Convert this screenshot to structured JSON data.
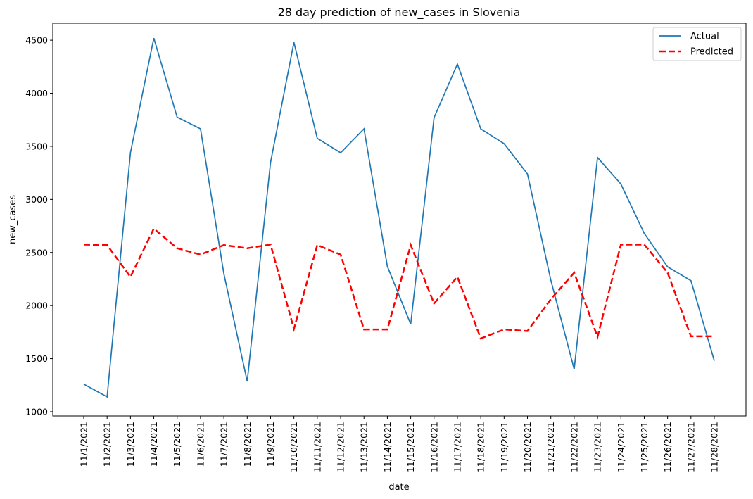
{
  "chart_data": {
    "type": "line",
    "title": "28 day prediction of new_cases in Slovenia",
    "xlabel": "date",
    "ylabel": "new_cases",
    "ylim": [
      960,
      4660
    ],
    "yticks": [
      1000,
      1500,
      2000,
      2500,
      3000,
      3500,
      4000,
      4500
    ],
    "grid": false,
    "legend_position": "top-right",
    "categories": [
      "11/1/2021",
      "11/2/2021",
      "11/3/2021",
      "11/4/2021",
      "11/5/2021",
      "11/6/2021",
      "11/7/2021",
      "11/8/2021",
      "11/9/2021",
      "11/10/2021",
      "11/11/2021",
      "11/12/2021",
      "11/13/2021",
      "11/14/2021",
      "11/15/2021",
      "11/16/2021",
      "11/17/2021",
      "11/18/2021",
      "11/19/2021",
      "11/20/2021",
      "11/21/2021",
      "11/22/2021",
      "11/23/2021",
      "11/24/2021",
      "11/25/2021",
      "11/26/2021",
      "11/27/2021",
      "11/28/2021"
    ],
    "series": [
      {
        "name": "Actual",
        "color": "#1f77b4",
        "style": "solid",
        "values": [
          1260,
          1140,
          3440,
          4520,
          3775,
          3665,
          2300,
          1285,
          3350,
          4480,
          3575,
          3440,
          3665,
          2370,
          1825,
          3770,
          4275,
          3665,
          3525,
          3240,
          2240,
          1400,
          3395,
          3145,
          2680,
          2365,
          2235,
          1480
        ]
      },
      {
        "name": "Predicted",
        "color": "#ff0000",
        "style": "dashed",
        "values": [
          2575,
          2570,
          2270,
          2725,
          2540,
          2480,
          2570,
          2540,
          2575,
          1780,
          2570,
          2480,
          1775,
          1775,
          2570,
          2020,
          2270,
          1690,
          1775,
          1760,
          2060,
          2310,
          1705,
          2575,
          2575,
          2310,
          1710,
          1710
        ]
      }
    ]
  }
}
